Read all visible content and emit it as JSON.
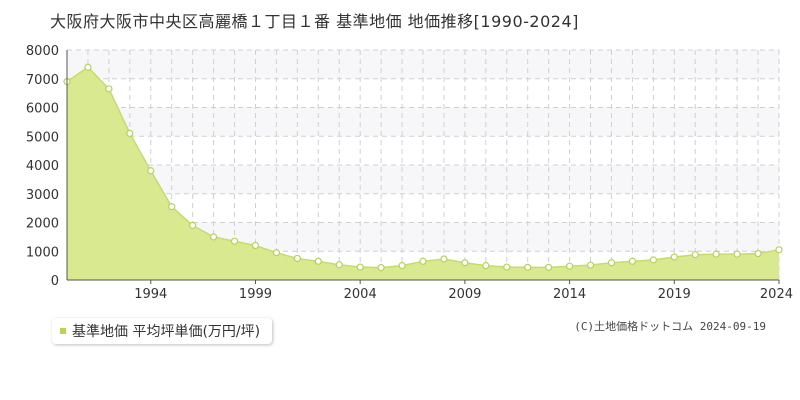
{
  "title": "大阪府大阪市中央区高麗橋１丁目１番 基準地価 地価推移[1990-2024]",
  "legend": {
    "label": "基準地価 平均坪単価(万円/坪)"
  },
  "credit": "(C)土地価格ドットコム 2024-09-19",
  "colors": {
    "fill": "#d9e98f",
    "line": "#c5dc6c",
    "marker_fill": "#ffffff",
    "marker_stroke": "#b5d15a",
    "legend_marker": "#b9d44e",
    "grid": "#d0d0d0",
    "band": "#f7f7fa"
  },
  "chart_data": {
    "type": "area",
    "title": "",
    "xlabel": "",
    "ylabel": "",
    "xlim": [
      1990,
      2024
    ],
    "ylim": [
      0,
      8000
    ],
    "y_ticks": [
      0,
      1000,
      2000,
      3000,
      4000,
      5000,
      6000,
      7000,
      8000
    ],
    "x_tick_labels": [
      "1994",
      "1999",
      "2004",
      "2009",
      "2014",
      "2019",
      "2024"
    ],
    "grid": true,
    "legend_position": "bottom-left",
    "series": [
      {
        "name": "基準地価 平均坪単価(万円/坪)",
        "x": [
          1990,
          1991,
          1992,
          1993,
          1994,
          1995,
          1996,
          1997,
          1998,
          1999,
          2000,
          2001,
          2002,
          2003,
          2004,
          2005,
          2006,
          2007,
          2008,
          2009,
          2010,
          2011,
          2012,
          2013,
          2014,
          2015,
          2016,
          2017,
          2018,
          2019,
          2020,
          2021,
          2022,
          2023,
          2024
        ],
        "values": [
          6900,
          7400,
          6650,
          5100,
          3800,
          2550,
          1900,
          1500,
          1350,
          1200,
          950,
          750,
          650,
          530,
          450,
          430,
          500,
          650,
          730,
          600,
          500,
          450,
          440,
          440,
          480,
          520,
          600,
          650,
          700,
          800,
          880,
          900,
          900,
          920,
          1050
        ]
      }
    ]
  }
}
